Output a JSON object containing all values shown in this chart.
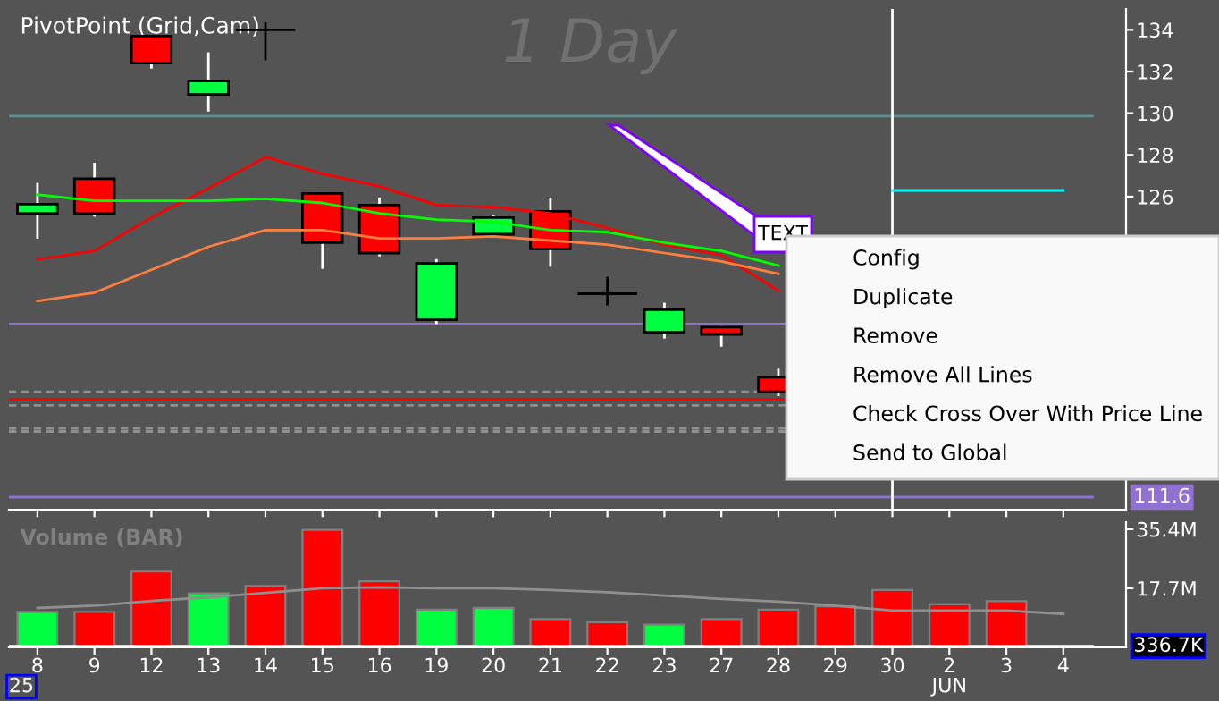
{
  "chart_data": [
    {
      "type": "candlestick",
      "title": "PivotPoint (Grid,Cam)",
      "subtitle": "1 Day",
      "categories": [
        "8",
        "9",
        "12",
        "13",
        "14",
        "15",
        "16",
        "19",
        "20",
        "21",
        "22",
        "23",
        "27",
        "28",
        "29",
        "30",
        "2",
        "3",
        "4"
      ],
      "ohlc": [
        [
          125.2,
          126.6,
          124.05,
          125.64
        ],
        [
          126.86,
          127.57,
          125.1,
          125.2
        ],
        [
          133.7,
          133.7,
          132.2,
          132.4
        ],
        [
          130.9,
          132.86,
          130.14,
          131.55
        ],
        [
          134.0,
          134.3,
          132.6,
          134.0
        ],
        [
          126.15,
          126.15,
          122.6,
          123.8
        ],
        [
          125.6,
          125.9,
          123.2,
          123.3
        ],
        [
          120.1,
          122.95,
          119.95,
          122.8
        ],
        [
          124.2,
          125.04,
          124.2,
          125.0
        ],
        [
          125.3,
          125.9,
          122.7,
          123.5
        ],
        [
          121.35,
          122.1,
          120.85,
          121.35
        ],
        [
          119.5,
          120.86,
          119.26,
          120.58
        ],
        [
          119.75,
          119.75,
          118.87,
          119.4
        ],
        [
          117.35,
          117.7,
          116.5,
          116.65
        ],
        null,
        null,
        null,
        null,
        null
      ],
      "colors": [
        "#00ff40",
        "#ff0000",
        "#ff0000",
        "#00ff40",
        "#000000",
        "#ff0000",
        "#ff0000",
        "#00ff40",
        "#00ff40",
        "#ff0000",
        "#000000",
        "#00ff40",
        "#ff0000",
        "#ff0000",
        null,
        null,
        null,
        null,
        null
      ],
      "series": [
        {
          "type": "line",
          "color": "#ff0000",
          "values": [
            123.0,
            123.4,
            125.0,
            126.4,
            127.9,
            127.1,
            126.5,
            125.6,
            125.5,
            125.2,
            124.5,
            123.7,
            123.2,
            121.5,
            null,
            null,
            null,
            null,
            null
          ]
        },
        {
          "type": "line",
          "color": "#00ff00",
          "values": [
            126.1,
            125.8,
            125.8,
            125.8,
            125.9,
            125.7,
            125.2,
            124.9,
            124.8,
            124.4,
            124.3,
            123.8,
            123.4,
            122.7,
            null,
            null,
            null,
            null,
            null
          ]
        },
        {
          "type": "line",
          "color": "#ff7f3f",
          "values": [
            121.0,
            121.4,
            122.5,
            123.6,
            124.4,
            124.4,
            124.0,
            124.0,
            124.1,
            123.9,
            123.7,
            123.3,
            122.9,
            122.3,
            null,
            null,
            null,
            null,
            null
          ]
        },
        {
          "type": "line",
          "color": "#00ffff",
          "values": [
            null,
            null,
            null,
            null,
            null,
            null,
            null,
            null,
            null,
            null,
            null,
            null,
            null,
            null,
            null,
            126.3,
            126.3,
            126.3,
            126.3
          ]
        }
      ],
      "ylim": [
        111,
        135
      ],
      "yticks": [
        126,
        128,
        130,
        132,
        134
      ],
      "tick_labels": "y",
      "grid": false,
      "ref_lines": [
        {
          "axis": "y",
          "value": 129.86,
          "color": "#5f8f8f"
        },
        {
          "axis": "y",
          "value": 119.9,
          "color": "#9070d0"
        },
        {
          "axis": "y",
          "value": 116.65,
          "color": "#909090",
          "line_style": "dashed"
        },
        {
          "axis": "y",
          "value": 116.3,
          "color": "#ff0000"
        },
        {
          "axis": "y",
          "value": 116.0,
          "color": "#909090",
          "line_style": "dashed"
        },
        {
          "axis": "y",
          "value": 114.9,
          "color": "#909090",
          "line_style": "dashed"
        },
        {
          "axis": "y",
          "value": 114.75,
          "color": "#909090",
          "line_style": "dashed"
        },
        {
          "axis": "y",
          "value": 111.6,
          "color": "#9070d0",
          "label": "111.6"
        },
        {
          "axis": "x",
          "value": "30",
          "color": "#ffffff"
        }
      ],
      "annotations": [
        "TEXT",
        "Config",
        "Duplicate",
        "Remove",
        "Remove All Lines",
        "Check Cross Over With Price Line",
        "Send to Global"
      ]
    },
    {
      "type": "bar",
      "title": "Volume (BAR)",
      "categories": [
        "8",
        "9",
        "12",
        "13",
        "14",
        "15",
        "16",
        "19",
        "20",
        "21",
        "22",
        "23",
        "27",
        "28",
        "29",
        "30",
        "2",
        "3",
        "4"
      ],
      "values": [
        10.6,
        10.6,
        22.7,
        16.2,
        18.4,
        35.2,
        19.8,
        11.3,
        11.8,
        8.5,
        7.5,
        6.8,
        8.5,
        11.3,
        12.3,
        17.2,
        12.9,
        13.8,
        0.34
      ],
      "colors": [
        "#00ff40",
        "#ff0000",
        "#ff0000",
        "#00ff40",
        "#ff0000",
        "#ff0000",
        "#ff0000",
        "#00ff40",
        "#00ff40",
        "#ff0000",
        "#ff0000",
        "#00ff40",
        "#ff0000",
        "#ff0000",
        "#ff0000",
        "#ff0000",
        "#ff0000",
        "#ff0000",
        "#ff0000"
      ],
      "series": [
        {
          "type": "line",
          "color": "#909090",
          "values": [
            11.8,
            12.5,
            13.9,
            15.0,
            16.3,
            17.7,
            18.0,
            17.7,
            17.7,
            17.2,
            16.5,
            15.5,
            14.5,
            13.7,
            12.5,
            11.0,
            11.0,
            11.0,
            10.0
          ]
        }
      ],
      "ylim": [
        0,
        37.5
      ],
      "yticks": [
        {
          "value": 35.4,
          "label": "35.4M"
        },
        {
          "value": 17.7,
          "label": "17.7M"
        }
      ],
      "grid": false,
      "ref_lines": [
        {
          "axis": "y",
          "value": 0.34,
          "label": "336.7K",
          "color": "#ffffff"
        }
      ],
      "annotations": [
        "25",
        "JUN"
      ]
    }
  ]
}
